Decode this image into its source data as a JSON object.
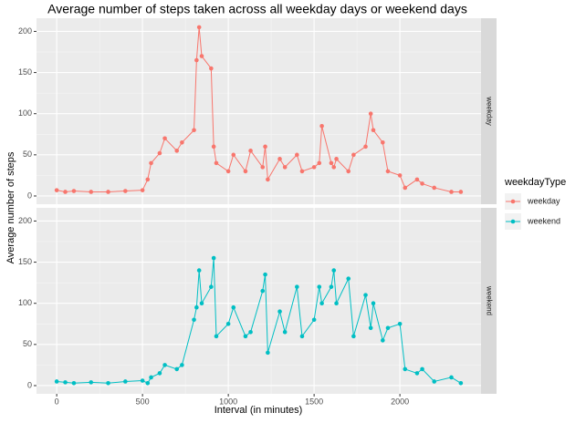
{
  "chart_data": {
    "type": "line",
    "title": "Average number of steps taken across all weekday days or weekend days",
    "x_label": "Interval (in minutes)",
    "y_label": "Average number of steps",
    "legend_title": "weekdayType",
    "x": [
      0,
      50,
      100,
      200,
      300,
      400,
      500,
      530,
      550,
      600,
      630,
      700,
      730,
      800,
      815,
      830,
      845,
      900,
      915,
      930,
      1000,
      1030,
      1100,
      1130,
      1200,
      1215,
      1230,
      1300,
      1330,
      1400,
      1430,
      1500,
      1530,
      1545,
      1600,
      1615,
      1630,
      1700,
      1730,
      1800,
      1830,
      1845,
      1900,
      1930,
      2000,
      2030,
      2100,
      2130,
      2200,
      2300,
      2355
    ],
    "series": [
      {
        "name": "weekday",
        "color": "#F8766D",
        "values": [
          7,
          5,
          6,
          5,
          5,
          6,
          7,
          20,
          40,
          52,
          70,
          55,
          65,
          80,
          165,
          205,
          170,
          155,
          60,
          40,
          30,
          50,
          30,
          55,
          35,
          60,
          20,
          45,
          35,
          50,
          30,
          35,
          40,
          85,
          40,
          35,
          45,
          30,
          50,
          60,
          100,
          80,
          65,
          30,
          25,
          10,
          20,
          15,
          10,
          5,
          5
        ]
      },
      {
        "name": "weekend",
        "color": "#00BFC4",
        "values": [
          5,
          4,
          3,
          4,
          3,
          5,
          6,
          3,
          10,
          15,
          25,
          20,
          25,
          80,
          95,
          140,
          100,
          120,
          155,
          60,
          75,
          95,
          60,
          65,
          115,
          135,
          40,
          90,
          65,
          120,
          60,
          80,
          120,
          100,
          120,
          140,
          100,
          130,
          60,
          110,
          70,
          100,
          55,
          70,
          75,
          20,
          15,
          20,
          5,
          10,
          3
        ]
      }
    ],
    "xlim": [
      -117.75,
      2472.75
    ],
    "xticks": [
      0,
      500,
      1000,
      1500,
      2000
    ],
    "ylim": [
      -10,
      216
    ],
    "yticks": [
      0,
      50,
      100,
      150,
      200
    ],
    "grid": true
  }
}
